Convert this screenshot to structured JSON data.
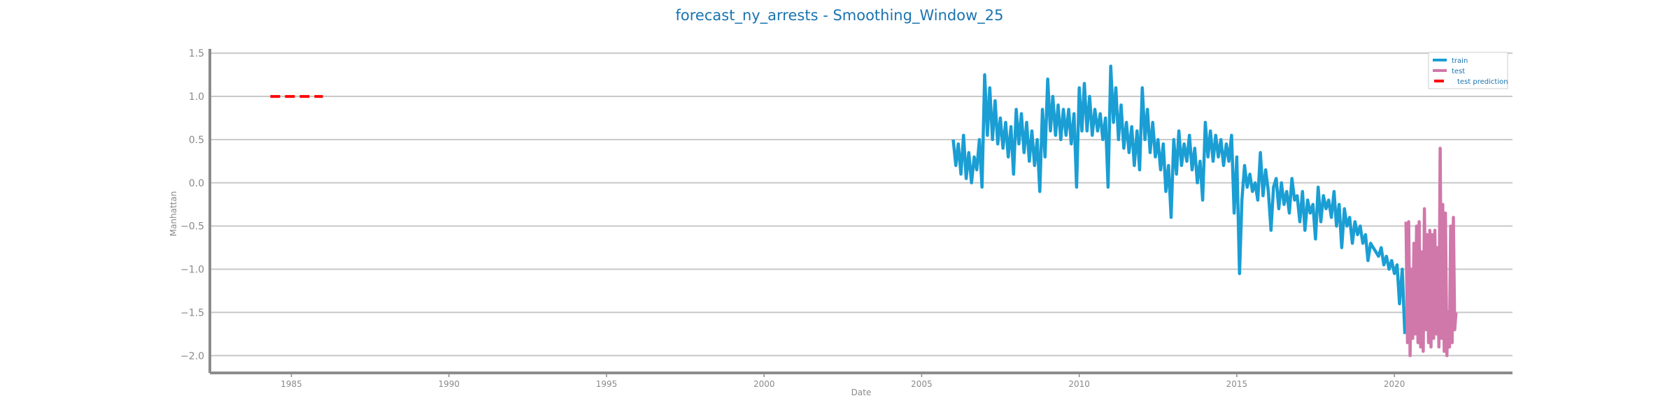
{
  "chart_data": {
    "type": "line",
    "title": "forecast_ny_arrests - Smoothing_Window_25",
    "xlabel": "Date",
    "ylabel": "Manhattan",
    "xlim": [
      "1982-06-01",
      "2023-10-01"
    ],
    "ylim": [
      -2.2,
      1.55
    ],
    "x_ticks": [
      "1985",
      "1990",
      "1995",
      "2000",
      "2005",
      "2010",
      "2015",
      "2020"
    ],
    "y_ticks": [
      "1.5",
      "1.0",
      "0.5",
      "0.0",
      "−0.5",
      "−1.0",
      "−1.5",
      "−2.0"
    ],
    "grid": "horizontal",
    "legend_position": "top-right",
    "series": [
      {
        "name": "train",
        "color": "#1a9ed4",
        "style": "solid",
        "x": [
          "2006-01-01",
          "2006-02-01",
          "2006-03-01",
          "2006-04-01",
          "2006-05-01",
          "2006-06-01",
          "2006-07-01",
          "2006-08-01",
          "2006-09-01",
          "2006-10-01",
          "2006-11-01",
          "2006-12-01",
          "2007-01-01",
          "2007-02-01",
          "2007-03-01",
          "2007-04-01",
          "2007-05-01",
          "2007-06-01",
          "2007-07-01",
          "2007-08-01",
          "2007-09-01",
          "2007-10-01",
          "2007-11-01",
          "2007-12-01",
          "2008-01-01",
          "2008-02-01",
          "2008-03-01",
          "2008-04-01",
          "2008-05-01",
          "2008-06-01",
          "2008-07-01",
          "2008-08-01",
          "2008-09-01",
          "2008-10-01",
          "2008-11-01",
          "2008-12-01",
          "2009-01-01",
          "2009-02-01",
          "2009-03-01",
          "2009-04-01",
          "2009-05-01",
          "2009-06-01",
          "2009-07-01",
          "2009-08-01",
          "2009-09-01",
          "2009-10-01",
          "2009-11-01",
          "2009-12-01",
          "2010-01-01",
          "2010-02-01",
          "2010-03-01",
          "2010-04-01",
          "2010-05-01",
          "2010-06-01",
          "2010-07-01",
          "2010-08-01",
          "2010-09-01",
          "2010-10-01",
          "2010-11-01",
          "2010-12-01",
          "2011-01-01",
          "2011-02-01",
          "2011-03-01",
          "2011-04-01",
          "2011-05-01",
          "2011-06-01",
          "2011-07-01",
          "2011-08-01",
          "2011-09-01",
          "2011-10-01",
          "2011-11-01",
          "2011-12-01",
          "2012-01-01",
          "2012-02-01",
          "2012-03-01",
          "2012-04-01",
          "2012-05-01",
          "2012-06-01",
          "2012-07-01",
          "2012-08-01",
          "2012-09-01",
          "2012-10-01",
          "2012-11-01",
          "2012-12-01",
          "2013-01-01",
          "2013-02-01",
          "2013-03-01",
          "2013-04-01",
          "2013-05-01",
          "2013-06-01",
          "2013-07-01",
          "2013-08-01",
          "2013-09-01",
          "2013-10-01",
          "2013-11-01",
          "2013-12-01",
          "2014-01-01",
          "2014-02-01",
          "2014-03-01",
          "2014-04-01",
          "2014-05-01",
          "2014-06-01",
          "2014-07-01",
          "2014-08-01",
          "2014-09-01",
          "2014-10-01",
          "2014-11-01",
          "2014-12-01",
          "2015-01-01",
          "2015-02-01",
          "2015-03-01",
          "2015-04-01",
          "2015-05-01",
          "2015-06-01",
          "2015-07-01",
          "2015-08-01",
          "2015-09-01",
          "2015-10-01",
          "2015-11-01",
          "2015-12-01",
          "2016-01-01",
          "2016-02-01",
          "2016-03-01",
          "2016-04-01",
          "2016-05-01",
          "2016-06-01",
          "2016-07-01",
          "2016-08-01",
          "2016-09-01",
          "2016-10-01",
          "2016-11-01",
          "2016-12-01",
          "2017-01-01",
          "2017-02-01",
          "2017-03-01",
          "2017-04-01",
          "2017-05-01",
          "2017-06-01",
          "2017-07-01",
          "2017-08-01",
          "2017-09-01",
          "2017-10-01",
          "2017-11-01",
          "2017-12-01",
          "2018-01-01",
          "2018-02-01",
          "2018-03-01",
          "2018-04-01",
          "2018-05-01",
          "2018-06-01",
          "2018-07-01",
          "2018-08-01",
          "2018-09-01",
          "2018-10-01",
          "2018-11-01",
          "2018-12-01",
          "2019-01-01",
          "2019-02-01",
          "2019-03-01",
          "2019-04-01",
          "2019-05-01",
          "2019-06-01",
          "2019-07-01",
          "2019-08-01",
          "2019-09-01",
          "2019-10-01",
          "2019-11-01",
          "2019-12-01",
          "2020-01-01",
          "2020-02-01",
          "2020-03-01",
          "2020-04-01",
          "2020-05-01"
        ],
        "values": [
          0.5,
          0.2,
          0.45,
          0.1,
          0.55,
          0.05,
          0.35,
          0.0,
          0.3,
          0.15,
          0.5,
          -0.05,
          1.25,
          0.55,
          1.1,
          0.5,
          0.95,
          0.45,
          0.75,
          0.4,
          0.7,
          0.3,
          0.65,
          0.1,
          0.85,
          0.45,
          0.8,
          0.35,
          0.7,
          0.25,
          0.6,
          0.2,
          0.5,
          -0.1,
          0.85,
          0.3,
          1.2,
          0.6,
          1.0,
          0.55,
          0.9,
          0.5,
          0.85,
          0.55,
          0.85,
          0.45,
          0.8,
          -0.05,
          1.1,
          0.6,
          1.15,
          0.6,
          1.0,
          0.55,
          0.85,
          0.6,
          0.8,
          0.5,
          0.75,
          -0.05,
          1.35,
          0.7,
          1.1,
          0.5,
          0.9,
          0.4,
          0.7,
          0.35,
          0.65,
          0.2,
          0.6,
          0.15,
          1.1,
          0.5,
          0.85,
          0.35,
          0.7,
          0.3,
          0.5,
          0.15,
          0.45,
          -0.1,
          0.2,
          -0.4,
          0.5,
          0.1,
          0.6,
          0.2,
          0.45,
          0.25,
          0.55,
          0.15,
          0.4,
          0.0,
          0.25,
          -0.2,
          0.7,
          0.3,
          0.6,
          0.25,
          0.55,
          0.3,
          0.5,
          0.2,
          0.45,
          0.25,
          0.55,
          -0.35,
          0.3,
          -1.05,
          -0.2,
          0.2,
          -0.05,
          0.1,
          -0.1,
          0.0,
          -0.2,
          0.35,
          -0.15,
          0.15,
          -0.1,
          -0.55,
          -0.05,
          0.05,
          -0.3,
          0.0,
          -0.25,
          -0.1,
          -0.35,
          0.05,
          -0.2,
          -0.15,
          -0.45,
          -0.1,
          -0.55,
          -0.2,
          -0.35,
          -0.25,
          -0.65,
          -0.05,
          -0.45,
          -0.15,
          -0.3,
          -0.2,
          -0.4,
          -0.1,
          -0.5,
          -0.25,
          -0.75,
          -0.3,
          -0.5,
          -0.4,
          -0.7,
          -0.45,
          -0.6,
          -0.5,
          -0.7,
          -0.6,
          -0.9,
          -0.7,
          -0.75,
          -0.8,
          -0.85,
          -0.75,
          -0.95,
          -0.85,
          -1.0,
          -0.9,
          -1.05,
          -0.95,
          -1.4,
          -1.0,
          -1.75
        ]
      },
      {
        "name": "test",
        "color": "#d078aa",
        "style": "solid",
        "x": [
          "2020-05-15",
          "2020-06-01",
          "2020-06-15",
          "2020-07-01",
          "2020-07-15",
          "2020-08-01",
          "2020-08-15",
          "2020-09-01",
          "2020-09-15",
          "2020-10-01",
          "2020-10-15",
          "2020-11-01",
          "2020-11-15",
          "2020-12-01",
          "2020-12-15",
          "2021-01-01",
          "2021-01-15",
          "2021-02-01",
          "2021-02-15",
          "2021-03-01",
          "2021-03-15",
          "2021-04-01",
          "2021-04-15",
          "2021-05-01",
          "2021-05-15",
          "2021-06-01",
          "2021-06-15",
          "2021-07-01",
          "2021-07-15",
          "2021-08-01",
          "2021-08-15",
          "2021-09-01",
          "2021-09-15",
          "2021-10-01",
          "2021-10-15",
          "2021-11-01",
          "2021-11-15",
          "2021-12-01",
          "2021-12-15"
        ],
        "values": [
          -0.45,
          -1.85,
          -0.45,
          -2.0,
          -1.0,
          -1.8,
          -0.7,
          -1.75,
          -0.5,
          -1.85,
          -0.45,
          -1.9,
          -0.8,
          -1.95,
          -0.3,
          -1.7,
          -0.6,
          -1.85,
          -0.55,
          -1.9,
          -0.6,
          -1.8,
          -0.55,
          -1.75,
          -0.75,
          -1.9,
          0.4,
          -1.8,
          -0.25,
          -1.95,
          -0.35,
          -2.0,
          -1.5,
          -1.9,
          -0.5,
          -1.85,
          -0.4,
          -1.7,
          -1.5
        ]
      },
      {
        "name": "test prediction",
        "color": "#ff0000",
        "style": "dashed",
        "x": [
          "1984-05-01",
          "1986-01-01"
        ],
        "values": [
          1.0,
          1.0
        ]
      }
    ]
  }
}
